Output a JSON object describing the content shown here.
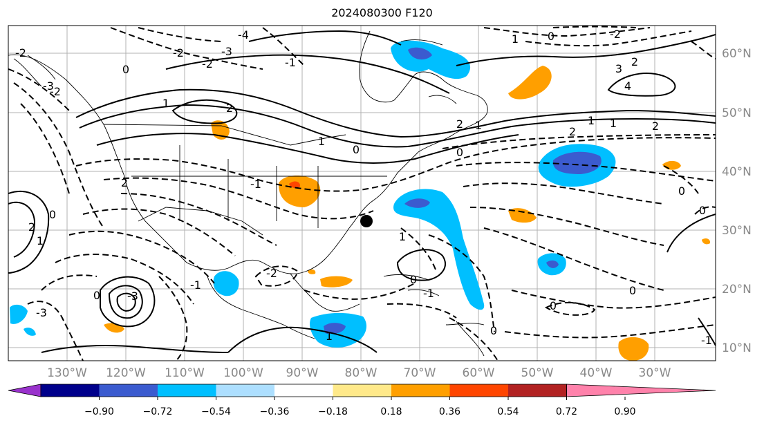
{
  "title": "2024080300 F120",
  "map": {
    "lat_labels": [
      "60°N",
      "50°N",
      "40°N",
      "30°N",
      "20°N",
      "10°N"
    ],
    "lon_labels": [
      "130°W",
      "120°W",
      "110°W",
      "100°W",
      "90°W",
      "80°W",
      "70°W",
      "60°W",
      "50°W",
      "40°W",
      "30°W"
    ],
    "contour_labels": [
      "-2",
      "-3",
      "-4",
      "-2",
      "0",
      "-1",
      "-2",
      "2",
      "1",
      "-2",
      "-3",
      "-1",
      "-3",
      "2",
      "1",
      "0",
      "2",
      "0",
      "1",
      "2",
      "1",
      "-2",
      "3",
      "2",
      "4",
      "1",
      "0",
      "1",
      "2",
      "2",
      "0",
      "0",
      "0",
      "0",
      "0",
      "-1",
      "-2",
      "0",
      "-3",
      "1",
      "0",
      "0",
      "-1",
      "1",
      "-1",
      "1"
    ],
    "marker": "black-dot"
  },
  "colorbar": {
    "ticks": [
      "−0.90",
      "−0.72",
      "−0.54",
      "−0.36",
      "−0.18",
      "0.18",
      "0.36",
      "0.54",
      "0.72",
      "0.90"
    ],
    "colors": [
      "#9932cc",
      "#00008b",
      "#3b5bcf",
      "#00bfff",
      "#addfff",
      "#ffffff",
      "#ffe98a",
      "#ff9f00",
      "#ff4500",
      "#b22222",
      "#ff82ab"
    ]
  }
}
